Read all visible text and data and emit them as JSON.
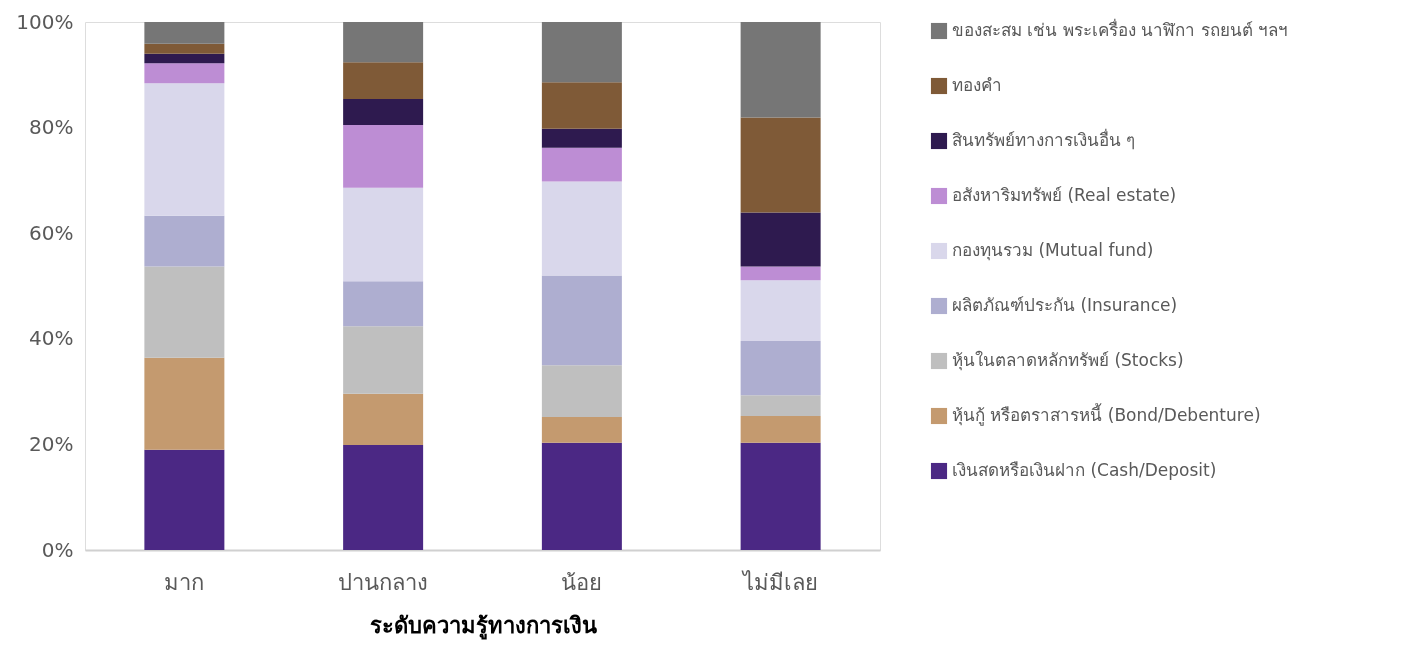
{
  "chart_data": {
    "type": "bar",
    "stacked": true,
    "xlabel": "ระดับความรู้ทางการเงิน",
    "categories": [
      "มาก",
      "ปานกลาง",
      "น้อย",
      "ไม่มีเลย"
    ],
    "series": [
      {
        "name": "เงินสดหรือเงินฝาก (Cash/Deposit)",
        "color": "#4b2884",
        "values": [
          19.0,
          19.9,
          20.3,
          20.3
        ]
      },
      {
        "name": "หุ้นกู้ หรือตราสารหนี้ (Bond/Debenture)",
        "color": "#c49a6f",
        "values": [
          17.4,
          9.7,
          4.9,
          5.1
        ]
      },
      {
        "name": "หุ้นในตลาดหลักทรัพย์ (Stocks)",
        "color": "#bfbfbf",
        "values": [
          17.3,
          12.8,
          9.8,
          3.9
        ]
      },
      {
        "name": "ผลิตภัณฑ์ประกัน (Insurance)",
        "color": "#aeaed0",
        "values": [
          9.6,
          8.5,
          17.0,
          10.3
        ]
      },
      {
        "name": "กองทุนรวม (Mutual fund)",
        "color": "#d9d7eb",
        "values": [
          25.1,
          17.7,
          17.8,
          11.5
        ]
      },
      {
        "name": "อสังหาริมทรัพย์ (Real estate)",
        "color": "#bd8dd4",
        "values": [
          3.8,
          11.9,
          6.4,
          2.6
        ]
      },
      {
        "name": "สินทรัพย์ทางการเงินอื่น ๆ",
        "color": "#2e1a4f",
        "values": [
          1.8,
          4.9,
          3.6,
          10.2
        ]
      },
      {
        "name": "ทองคำ",
        "color": "#7f5a37",
        "values": [
          1.9,
          7.0,
          8.8,
          18.0
        ]
      },
      {
        "name": "ของสะสม เช่น พระเครื่อง นาฬิกา รถยนต์ ฯลฯ",
        "color": "#767676",
        "values": [
          4.1,
          7.6,
          11.4,
          18.1
        ]
      }
    ],
    "ylim": [
      0,
      100
    ],
    "yticks": [
      {
        "value": 0,
        "label": "0%"
      },
      {
        "value": 20,
        "label": "20%"
      },
      {
        "value": 40,
        "label": "40%"
      },
      {
        "value": 60,
        "label": "60%"
      },
      {
        "value": 80,
        "label": "80%"
      },
      {
        "value": 100,
        "label": "100%"
      }
    ],
    "grid": false,
    "legend": "right"
  }
}
